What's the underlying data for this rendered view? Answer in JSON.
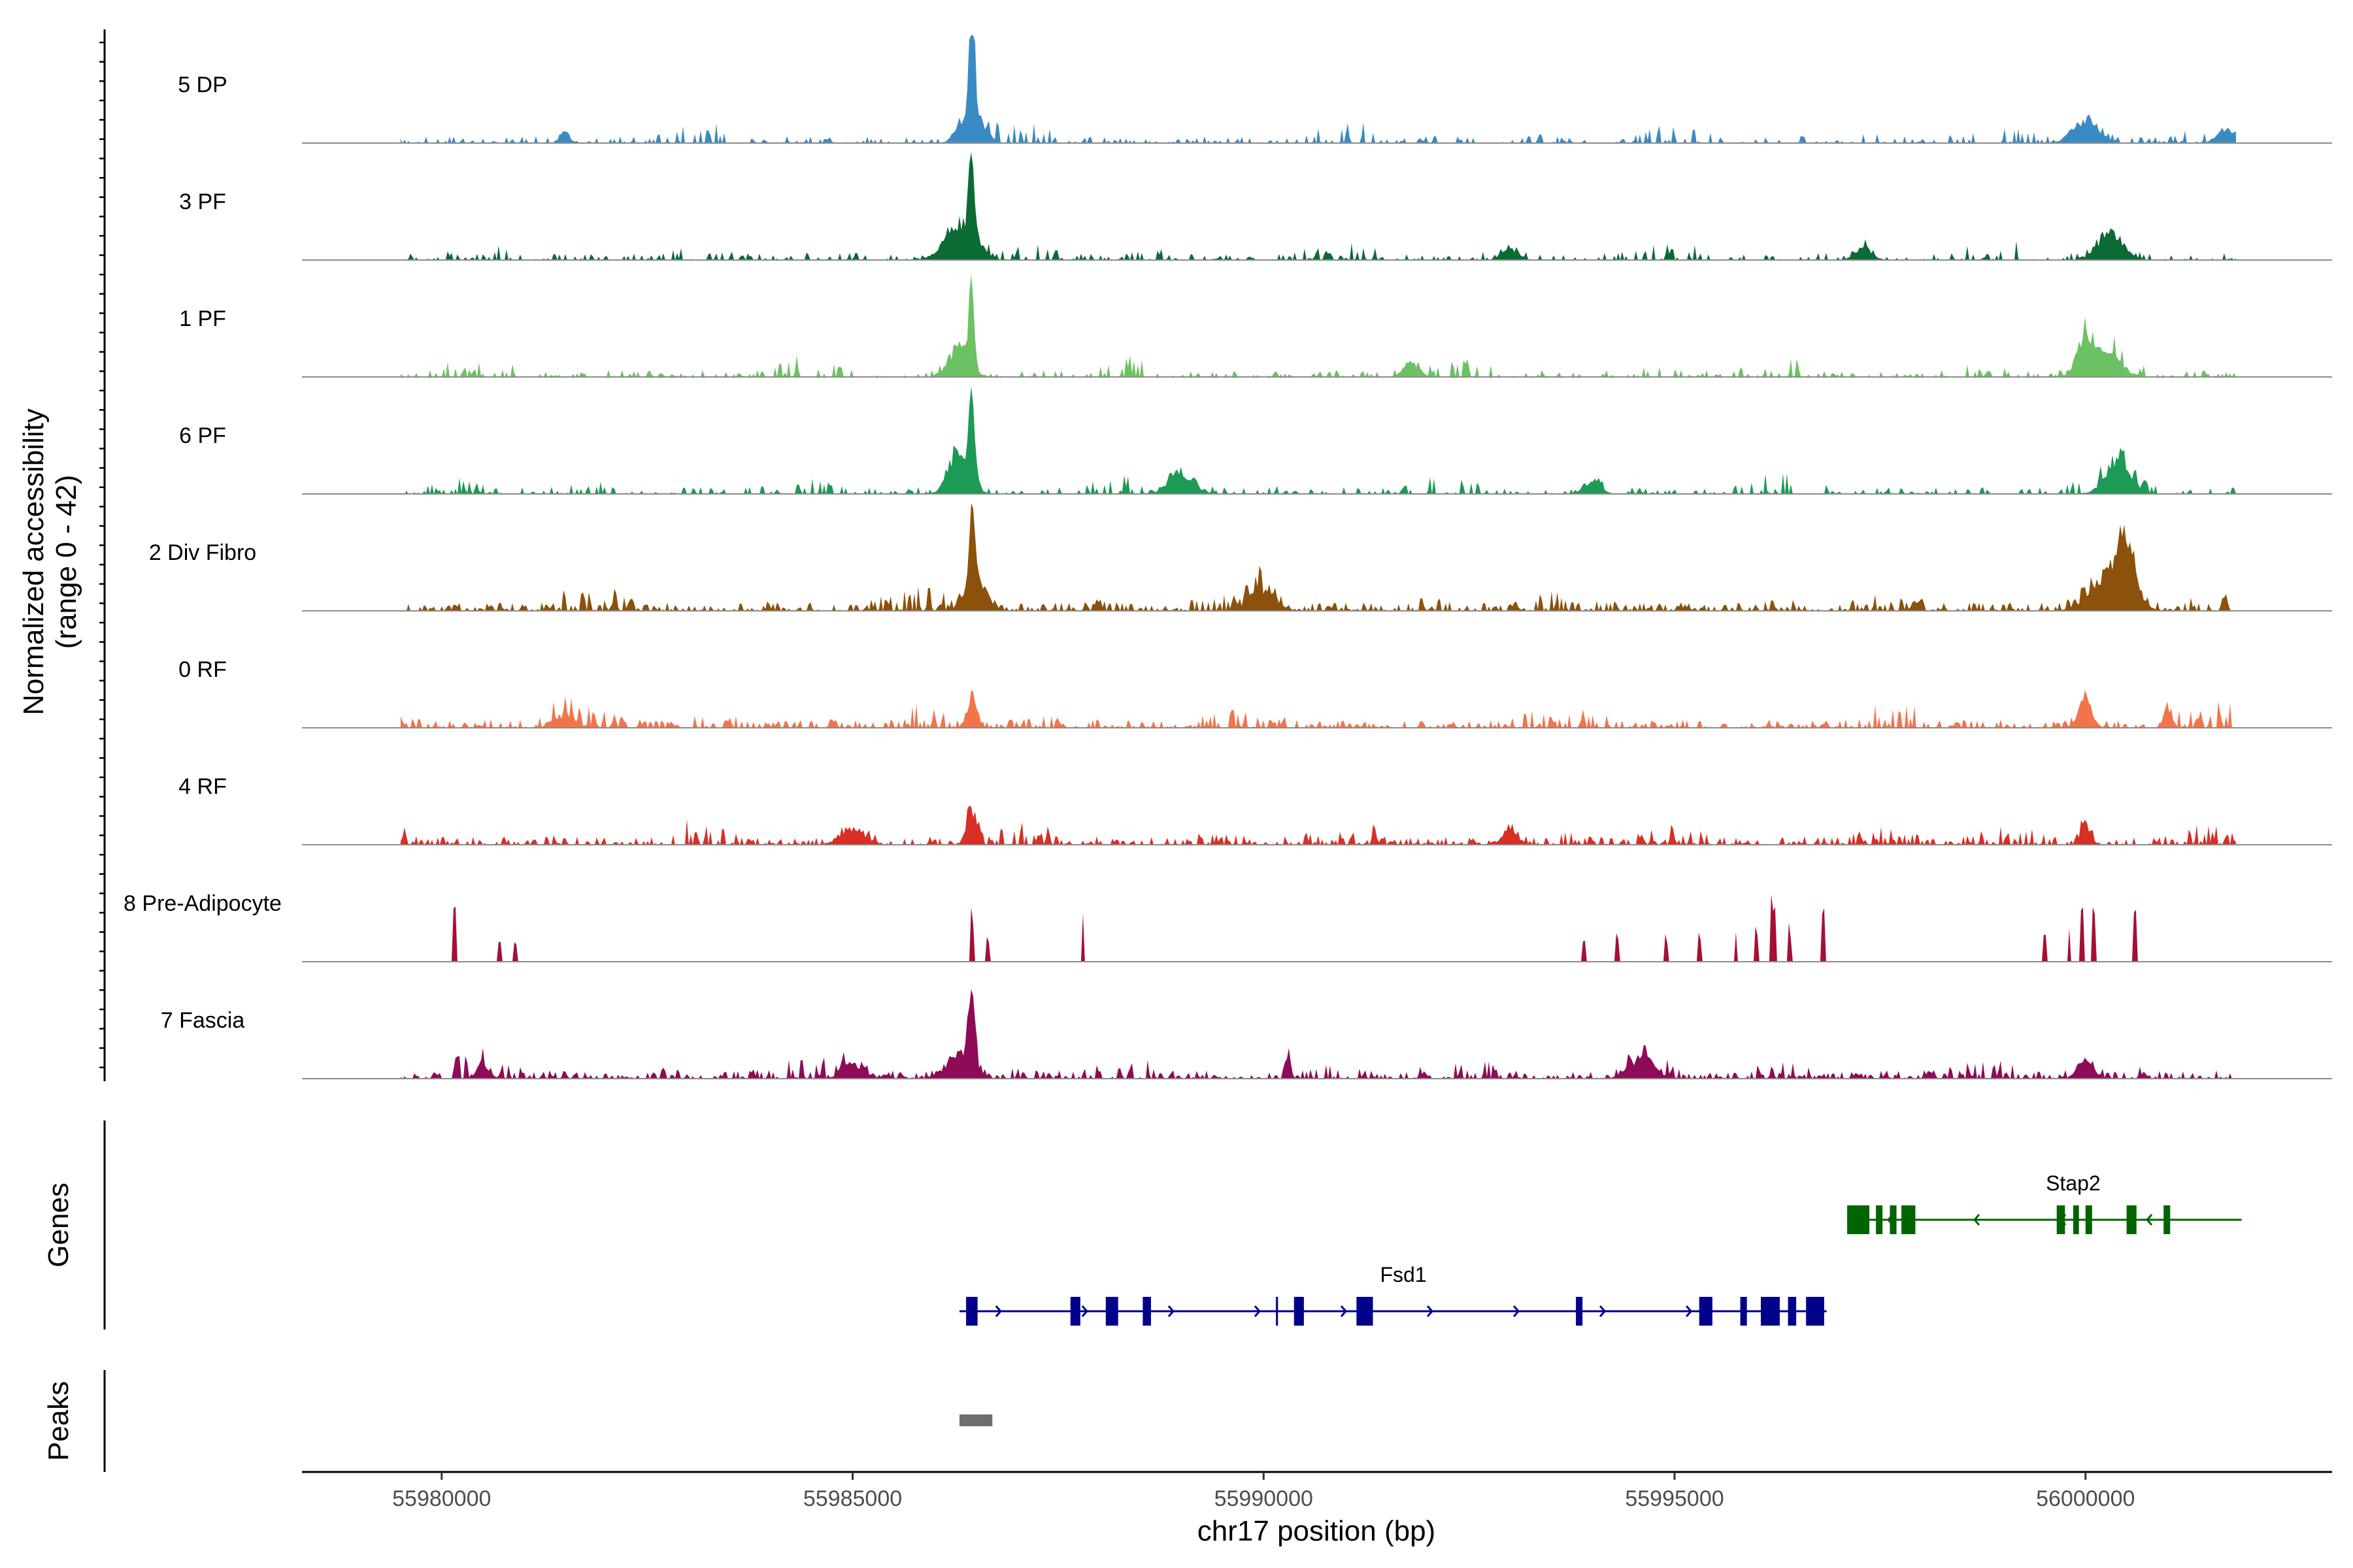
{
  "chart_data": {
    "type": "area",
    "title": "",
    "xlabel": "chr17 position (bp)",
    "ylabel": "Normalized accessibility\n(range 0 - 42)",
    "y_range": [
      0,
      42
    ],
    "xlim": [
      55978300,
      56003000
    ],
    "x_ticks": [
      55980000,
      55985000,
      55990000,
      55995000,
      56000000
    ],
    "x_tick_labels": [
      "55980000",
      "55985000",
      "55990000",
      "55995000",
      "56000000"
    ],
    "series": [
      {
        "name": "5 DP",
        "color": "#3a8bc3",
        "pattern": "sparse",
        "peaks": [
          [
            55986450,
            42,
            60
          ],
          [
            55986450,
            14,
            260
          ],
          [
            56000000,
            9,
            300
          ],
          [
            56001700,
            6,
            200
          ],
          [
            55981500,
            4,
            120
          ]
        ]
      },
      {
        "name": "3 PF",
        "color": "#0b6b35",
        "pattern": "sparse",
        "peaks": [
          [
            55986450,
            32,
            70
          ],
          [
            55986300,
            14,
            350
          ],
          [
            56000300,
            10,
            300
          ],
          [
            55997300,
            5,
            200
          ],
          [
            55993000,
            4,
            200
          ]
        ]
      },
      {
        "name": "1 PF",
        "color": "#6cc164",
        "pattern": "sparse",
        "peaks": [
          [
            55986450,
            34,
            60
          ],
          [
            55986300,
            12,
            250
          ],
          [
            56000000,
            16,
            200
          ],
          [
            56000300,
            8,
            300
          ],
          [
            55991800,
            5,
            200
          ]
        ]
      },
      {
        "name": "6 PF",
        "color": "#1d9a55",
        "pattern": "sparse",
        "peaks": [
          [
            55986450,
            38,
            70
          ],
          [
            55986300,
            16,
            250
          ],
          [
            56000400,
            12,
            300
          ],
          [
            55989000,
            8,
            300
          ],
          [
            55994000,
            5,
            200
          ]
        ]
      },
      {
        "name": "2 Div Fibro",
        "color": "#8c510a",
        "pattern": "dense",
        "peaks": [
          [
            55986450,
            30,
            70
          ],
          [
            55986500,
            12,
            250
          ],
          [
            56000500,
            22,
            200
          ],
          [
            56000300,
            12,
            450
          ],
          [
            55990000,
            8,
            300
          ]
        ]
      },
      {
        "name": "0 RF",
        "color": "#f2744a",
        "pattern": "dense",
        "peaks": [
          [
            55986450,
            12,
            120
          ],
          [
            56000000,
            12,
            150
          ],
          [
            55981500,
            5,
            250
          ],
          [
            56001000,
            7,
            100
          ]
        ]
      },
      {
        "name": "4 RF",
        "color": "#d73027",
        "pattern": "dense",
        "peaks": [
          [
            55986450,
            14,
            120
          ],
          [
            56000000,
            8,
            120
          ],
          [
            55985000,
            6,
            300
          ],
          [
            55993000,
            5,
            200
          ]
        ]
      },
      {
        "name": "8 Pre-Adipocyte",
        "color": "#a50f35",
        "pattern": "blocky",
        "peaks": [
          [
            55980150,
            22,
            40
          ],
          [
            55980700,
            12,
            40
          ],
          [
            55980900,
            12,
            40
          ],
          [
            55986450,
            22,
            50
          ],
          [
            55986650,
            10,
            40
          ],
          [
            55987800,
            22,
            40
          ],
          [
            55993900,
            12,
            40
          ],
          [
            55994300,
            12,
            40
          ],
          [
            55994900,
            12,
            60
          ],
          [
            55995300,
            12,
            40
          ],
          [
            55995750,
            12,
            40
          ],
          [
            55996000,
            14,
            40
          ],
          [
            55996200,
            30,
            50
          ],
          [
            55996400,
            16,
            40
          ],
          [
            55996800,
            22,
            50
          ],
          [
            55999500,
            12,
            40
          ],
          [
            55999800,
            22,
            40
          ],
          [
            55999950,
            22,
            40
          ],
          [
            56000100,
            22,
            50
          ],
          [
            56000600,
            22,
            50
          ]
        ]
      },
      {
        "name": "7 Fascia",
        "color": "#8e0b58",
        "pattern": "dense",
        "peaks": [
          [
            55986450,
            30,
            80
          ],
          [
            55986300,
            10,
            300
          ],
          [
            55985000,
            6,
            250
          ],
          [
            55990300,
            10,
            60
          ],
          [
            55994600,
            8,
            300
          ],
          [
            56000000,
            6,
            200
          ],
          [
            55980500,
            6,
            150
          ]
        ]
      }
    ],
    "genes": [
      {
        "name": "Stap2",
        "strand": "-",
        "start": 55997100,
        "end": 56001900,
        "color": "#006400",
        "row": 1,
        "exons": [
          [
            55997100,
            55997370
          ],
          [
            55997450,
            55997530
          ],
          [
            55997620,
            55997700
          ],
          [
            55997760,
            55997930
          ],
          [
            55999650,
            55999750
          ],
          [
            55999850,
            55999920
          ],
          [
            56000000,
            56000080
          ],
          [
            56000500,
            56000620
          ],
          [
            56000950,
            56001030
          ]
        ]
      },
      {
        "name": "Fsd1",
        "strand": "+",
        "start": 55986300,
        "end": 55996850,
        "color": "#00008b",
        "row": 2,
        "exons": [
          [
            55986380,
            55986520
          ],
          [
            55987650,
            55987770
          ],
          [
            55988080,
            55988230
          ],
          [
            55988530,
            55988630
          ],
          [
            55990150,
            55990175
          ],
          [
            55990370,
            55990490
          ],
          [
            55991130,
            55991330
          ],
          [
            55993800,
            55993880
          ],
          [
            55995300,
            55995460
          ],
          [
            55995800,
            55995880
          ],
          [
            55996050,
            55996280
          ],
          [
            55996380,
            55996480
          ],
          [
            55996600,
            55996820
          ]
        ]
      }
    ],
    "peaks_track": [
      [
        55986300,
        55986700
      ]
    ],
    "panel_labels": {
      "genes": "Genes",
      "peaks": "Peaks"
    }
  }
}
